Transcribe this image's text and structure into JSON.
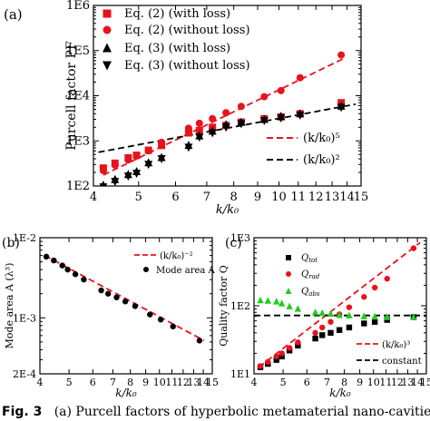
{
  "figure": {
    "caption_label": "Fig. 3",
    "caption_text": "(a) Purcell factors of hyperbolic metamaterial nano-cavities"
  },
  "chart_data": [
    {
      "panel": "(a)",
      "type": "scatter",
      "xlabel": "k/k₀",
      "ylabel": "Purcell factor PF",
      "xscale": "log",
      "yscale": "log",
      "xlim": [
        4,
        15
      ],
      "ylim": [
        100,
        1000000
      ],
      "xticks": [
        "4",
        "5",
        "6",
        "7",
        "8",
        "9",
        "10",
        "11",
        "12",
        "13",
        "14",
        "15"
      ],
      "yticks": [
        "1E2",
        "1E3",
        "1E4",
        "1E5",
        "1E6"
      ],
      "legend_placement": "top-left",
      "series": [
        {
          "name": "Eq. (2) (with loss)",
          "marker": "square",
          "color": "#e8121c",
          "x": [
            4.2,
            4.45,
            4.75,
            4.95,
            5.25,
            5.6,
            6.4,
            6.75,
            7.2,
            7.7,
            8.3,
            9.3,
            10.1,
            11.1,
            13.6
          ],
          "y": [
            250,
            320,
            420,
            480,
            620,
            790,
            1500,
            1700,
            2000,
            2200,
            2600,
            3100,
            3400,
            4000,
            7000
          ]
        },
        {
          "name": "Eq. (2) (without loss)",
          "marker": "circle",
          "color": "#e8121c",
          "x": [
            4.2,
            4.45,
            4.75,
            4.95,
            5.25,
            5.6,
            6.4,
            6.75,
            7.2,
            7.7,
            8.3,
            9.3,
            10.1,
            11.1,
            13.6
          ],
          "y": [
            220,
            290,
            380,
            460,
            600,
            930,
            1900,
            2450,
            3100,
            4200,
            5800,
            9500,
            13000,
            25000,
            80000
          ]
        },
        {
          "name": "Eq. (3) (with loss)",
          "marker": "triangle-up",
          "color": "#000000",
          "x": [
            4.2,
            4.45,
            4.75,
            4.95,
            5.25,
            5.6,
            6.4,
            6.75,
            7.2,
            7.7,
            8.3,
            9.3,
            10.1,
            11.1,
            13.6
          ],
          "y": [
            105,
            140,
            180,
            210,
            330,
            430,
            800,
            1300,
            1650,
            2300,
            2600,
            3000,
            3500,
            4000,
            5900
          ]
        },
        {
          "name": "Eq. (3) (without loss)",
          "marker": "triangle-down",
          "color": "#000000",
          "x": [
            4.2,
            4.45,
            4.75,
            4.95,
            5.25,
            5.6,
            6.4,
            6.75,
            7.2,
            7.7,
            8.3,
            9.3,
            10.1,
            11.1,
            13.6
          ],
          "y": [
            95,
            125,
            165,
            190,
            300,
            400,
            720,
            1200,
            1500,
            2000,
            2400,
            2800,
            3200,
            3700,
            5500
          ]
        }
      ],
      "lines": [
        {
          "name": "(k/k₀)⁵",
          "style": "dashed",
          "color": "#e8121c",
          "x": [
            4.2,
            13.9
          ],
          "y": [
            175,
            70000
          ]
        },
        {
          "name": "(k/k₀)²",
          "style": "dashed",
          "color": "#000000",
          "x": [
            4.1,
            14.6
          ],
          "y": [
            560,
            6500
          ]
        }
      ]
    },
    {
      "panel": "(b)",
      "type": "scatter",
      "xlabel": "k/k₀",
      "ylabel": "Mode area A (λ³)",
      "xscale": "log",
      "yscale": "log",
      "xlim": [
        4,
        15
      ],
      "ylim": [
        0.0002,
        0.01
      ],
      "xticks": [
        "4",
        "5",
        "6",
        "7",
        "8",
        "9",
        "10",
        "11",
        "12",
        "13",
        "14",
        "15"
      ],
      "yticks": [
        "1E-2",
        "1E-3",
        "2E-4"
      ],
      "legend_placement": "top-right",
      "series": [
        {
          "name": "Mode area A",
          "marker": "circle",
          "color": "#000000",
          "x": [
            4.2,
            4.45,
            4.75,
            4.95,
            5.25,
            5.6,
            6.4,
            6.75,
            7.2,
            7.7,
            8.3,
            9.3,
            10.1,
            11.1,
            13.6
          ],
          "y": [
            0.0058,
            0.0052,
            0.0045,
            0.004,
            0.0035,
            0.003,
            0.0022,
            0.002,
            0.0018,
            0.0016,
            0.0014,
            0.0011,
            0.00095,
            0.00078,
            0.00052
          ]
        }
      ],
      "lines": [
        {
          "name": "(k/k₀)⁻²",
          "style": "dashed",
          "color": "#e8121c",
          "x": [
            4.15,
            14.1
          ],
          "y": [
            0.006,
            0.00052
          ]
        }
      ]
    },
    {
      "panel": "(c)",
      "type": "scatter",
      "xlabel": "k/k₀",
      "ylabel": "Quality factor Q",
      "xscale": "log",
      "yscale": "log",
      "xlim": [
        4,
        15
      ],
      "ylim": [
        10,
        1000
      ],
      "xticks": [
        "4",
        "5",
        "6",
        "7",
        "8",
        "9",
        "10",
        "11",
        "12",
        "13",
        "14",
        "15"
      ],
      "yticks": [
        "1E1",
        "1E2",
        "1E3"
      ],
      "legend_placement": "top-left",
      "series": [
        {
          "name": "Q_tot",
          "marker": "square",
          "color": "#000000",
          "x": [
            4.2,
            4.45,
            4.75,
            4.95,
            5.25,
            5.6,
            6.4,
            6.75,
            7.2,
            7.7,
            8.3,
            9.3,
            10.1,
            11.1,
            13.6
          ],
          "y": [
            12.5,
            14,
            16,
            18,
            22,
            26,
            33,
            37,
            40,
            44,
            48,
            55,
            58,
            62,
            68
          ]
        },
        {
          "name": "Q_rad",
          "marker": "circle",
          "color": "#e8121c",
          "x": [
            4.2,
            4.45,
            4.75,
            4.95,
            5.25,
            5.6,
            6.4,
            6.75,
            7.2,
            7.7,
            8.3,
            9.3,
            10.1,
            11.1,
            13.6
          ],
          "y": [
            13,
            15,
            18,
            20,
            24,
            29,
            40,
            48,
            58,
            75,
            95,
            135,
            185,
            250,
            700
          ]
        },
        {
          "name": "Q_abs",
          "marker": "triangle-up",
          "color": "#22cc22",
          "x": [
            4.2,
            4.45,
            4.75,
            4.95,
            5.25,
            5.6,
            6.4,
            6.75,
            7.2,
            7.7,
            8.3,
            9.3,
            10.1,
            11.1,
            13.6
          ],
          "y": [
            120,
            118,
            115,
            108,
            98,
            90,
            80,
            78,
            76,
            73,
            72,
            70,
            69,
            68,
            68
          ]
        }
      ],
      "lines": [
        {
          "name": "(k/k₀)³",
          "style": "dashed",
          "color": "#e8121c",
          "x": [
            4.15,
            14.3
          ],
          "y": [
            12.5,
            850
          ]
        },
        {
          "name": "constant",
          "style": "dashed",
          "color": "#000000",
          "x": [
            4.0,
            15.0
          ],
          "y": [
            72,
            72
          ]
        }
      ]
    }
  ]
}
